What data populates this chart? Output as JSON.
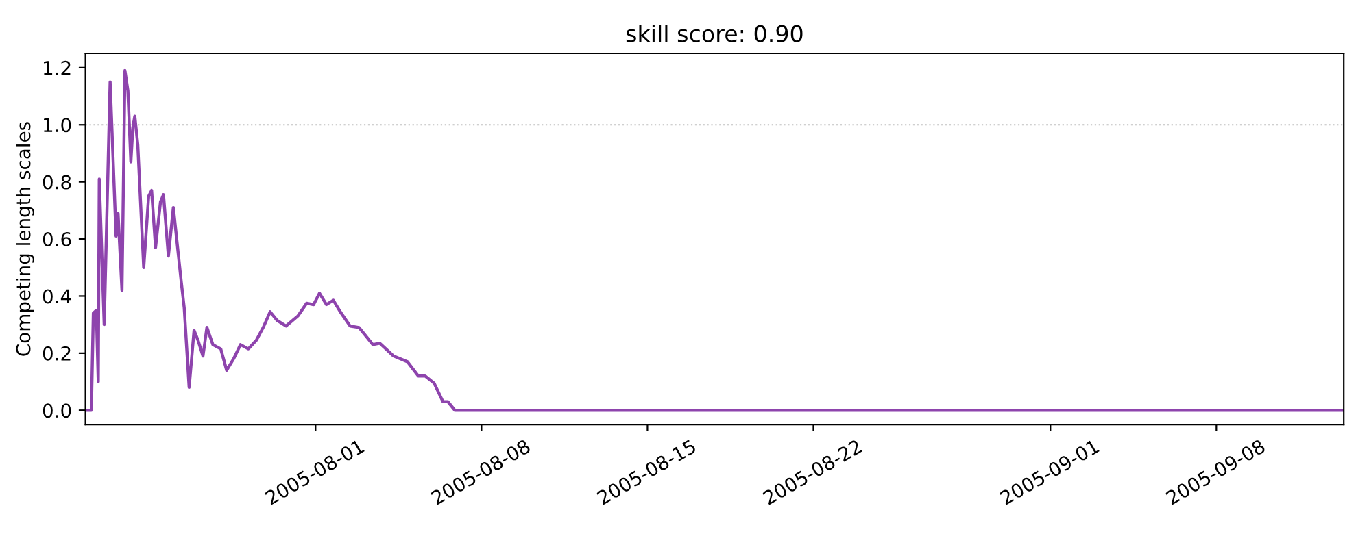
{
  "chart_data": {
    "type": "line",
    "title": "skill score: 0.90",
    "ylabel": "Competing length scales",
    "x": [
      "2005-07-22T07:00",
      "2005-07-22T13:00",
      "2005-07-22T15:00",
      "2005-07-22T18:00",
      "2005-07-22T20:00",
      "2005-07-22T21:00",
      "2005-07-23T02:00",
      "2005-07-23T08:00",
      "2005-07-23T14:00",
      "2005-07-23T16:00",
      "2005-07-23T20:00",
      "2005-07-23T23:00",
      "2005-07-24T02:00",
      "2005-07-24T05:00",
      "2005-07-24T07:00",
      "2005-07-24T09:00",
      "2005-07-24T12:00",
      "2005-07-24T18:00",
      "2005-07-24T23:00",
      "2005-07-25T02:00",
      "2005-07-25T06:00",
      "2005-07-25T11:00",
      "2005-07-25T14:00",
      "2005-07-25T19:00",
      "2005-07-26T00:00",
      "2005-07-26T08:00",
      "2005-07-26T11:00",
      "2005-07-26T16:00",
      "2005-07-26T21:00",
      "2005-07-27T01:00",
      "2005-07-27T06:00",
      "2005-07-27T10:00",
      "2005-07-27T16:00",
      "2005-07-28T00:00",
      "2005-07-28T06:00",
      "2005-07-28T13:00",
      "2005-07-28T20:00",
      "2005-07-29T04:00",
      "2005-07-29T12:00",
      "2005-07-29T19:00",
      "2005-07-30T02:00",
      "2005-07-30T09:00",
      "2005-07-30T18:00",
      "2005-07-31T06:00",
      "2005-07-31T15:00",
      "2005-07-31T22:00",
      "2005-08-01T04:00",
      "2005-08-01T11:00",
      "2005-08-01T18:00",
      "2005-08-02T01:00",
      "2005-08-02T11:00",
      "2005-08-02T20:00",
      "2005-08-03T10:00",
      "2005-08-03T17:00",
      "2005-08-04T07:00",
      "2005-08-04T21:00",
      "2005-08-05T08:00",
      "2005-08-05T15:00",
      "2005-08-06T00:00",
      "2005-08-06T09:00",
      "2005-08-06T14:00",
      "2005-08-06T21:00",
      "2005-09-13T08:00"
    ],
    "series": [
      {
        "color": "#8e44ad",
        "values": [
          0.0,
          0.0,
          0.34,
          0.35,
          0.1,
          0.81,
          0.3,
          1.15,
          0.61,
          0.69,
          0.42,
          1.19,
          1.12,
          0.87,
          0.99,
          1.03,
          0.93,
          0.5,
          0.75,
          0.77,
          0.57,
          0.73,
          0.755,
          0.54,
          0.71,
          0.45,
          0.36,
          0.08,
          0.28,
          0.245,
          0.19,
          0.29,
          0.23,
          0.215,
          0.14,
          0.18,
          0.23,
          0.215,
          0.245,
          0.29,
          0.345,
          0.315,
          0.295,
          0.33,
          0.375,
          0.37,
          0.41,
          0.37,
          0.385,
          0.345,
          0.295,
          0.29,
          0.23,
          0.235,
          0.19,
          0.17,
          0.12,
          0.12,
          0.095,
          0.03,
          0.03,
          0.0,
          0.0
        ]
      }
    ],
    "xlim": [
      "2005-07-22T07:00",
      "2005-09-13T09:00"
    ],
    "xticks": [
      "2005-08-01",
      "2005-08-08",
      "2005-08-15",
      "2005-08-22",
      "2005-09-01",
      "2005-09-08"
    ],
    "ylim": [
      -0.05,
      1.25
    ],
    "yticks": [
      {
        "value": 0,
        "label": "0.0"
      },
      0.2,
      0.4,
      0.6,
      0.8,
      {
        "value": 1,
        "label": "1.0"
      },
      1.2
    ],
    "ref_lines": [
      {
        "axis": "y",
        "value": 1.0,
        "color": "#c0c0c0",
        "line_style": "dotted"
      }
    ],
    "grid": false,
    "legend": false,
    "marker": "none",
    "line_style": "solid"
  }
}
